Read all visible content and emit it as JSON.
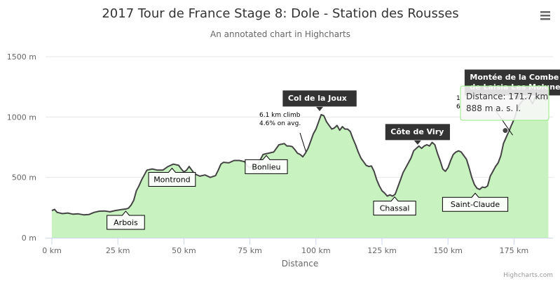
{
  "title": "2017 Tour de France Stage 8: Dole - Station des Rousses",
  "subtitle": "An annotated chart in Highcharts",
  "credits": "Highcharts.com",
  "menu_icon": "hamburger-menu-icon",
  "colors": {
    "area_fill": "#c8f3c0",
    "line": "#444444",
    "dark_label": "#333333",
    "tooltip_border": "#90ed7d",
    "grid": "#e6e6e6"
  },
  "chart_data": {
    "type": "area",
    "xlabel": "Distance",
    "ylabel": "",
    "x_unit": "km",
    "y_unit": "m",
    "xlim": [
      0,
      190
    ],
    "ylim": [
      0,
      1500
    ],
    "x_ticks": [
      "0 km",
      "25 km",
      "50 km",
      "75 km",
      "100 km",
      "125 km",
      "150 km",
      "175 km"
    ],
    "y_ticks": [
      "0 m",
      "500 m",
      "1000 m",
      "1500 m"
    ],
    "grid": true,
    "points": [
      [
        0,
        225
      ],
      [
        1,
        235
      ],
      [
        2,
        210
      ],
      [
        4,
        200
      ],
      [
        6,
        205
      ],
      [
        8,
        195
      ],
      [
        10,
        198
      ],
      [
        12,
        190
      ],
      [
        14,
        192
      ],
      [
        16,
        210
      ],
      [
        18,
        220
      ],
      [
        20,
        222
      ],
      [
        22,
        215
      ],
      [
        24,
        225
      ],
      [
        26,
        232
      ],
      [
        28,
        238
      ],
      [
        29,
        245
      ],
      [
        30,
        270
      ],
      [
        31,
        310
      ],
      [
        32,
        390
      ],
      [
        33,
        430
      ],
      [
        34,
        480
      ],
      [
        35,
        520
      ],
      [
        36,
        560
      ],
      [
        38,
        570
      ],
      [
        40,
        560
      ],
      [
        42,
        560
      ],
      [
        44,
        590
      ],
      [
        46,
        610
      ],
      [
        48,
        600
      ],
      [
        49,
        570
      ],
      [
        50,
        545
      ],
      [
        51,
        560
      ],
      [
        52,
        590
      ],
      [
        53,
        560
      ],
      [
        54,
        530
      ],
      [
        56,
        510
      ],
      [
        58,
        520
      ],
      [
        60,
        500
      ],
      [
        62,
        515
      ],
      [
        63,
        560
      ],
      [
        64,
        610
      ],
      [
        65,
        625
      ],
      [
        67,
        620
      ],
      [
        69,
        640
      ],
      [
        71,
        640
      ],
      [
        73,
        630
      ],
      [
        74,
        595
      ],
      [
        75,
        580
      ],
      [
        76,
        600
      ],
      [
        78,
        610
      ],
      [
        79,
        650
      ],
      [
        80,
        690
      ],
      [
        82,
        700
      ],
      [
        84,
        710
      ],
      [
        86,
        770
      ],
      [
        88,
        780
      ],
      [
        89,
        760
      ],
      [
        90,
        760
      ],
      [
        91,
        755
      ],
      [
        92,
        730
      ],
      [
        93,
        700
      ],
      [
        94,
        690
      ],
      [
        95,
        670
      ],
      [
        96,
        700
      ],
      [
        97,
        740
      ],
      [
        98,
        800
      ],
      [
        99,
        860
      ],
      [
        100,
        900
      ],
      [
        101,
        960
      ],
      [
        102,
        1020
      ],
      [
        103,
        1010
      ],
      [
        104,
        960
      ],
      [
        105,
        930
      ],
      [
        106,
        900
      ],
      [
        107,
        910
      ],
      [
        108,
        930
      ],
      [
        109,
        890
      ],
      [
        110,
        920
      ],
      [
        111,
        900
      ],
      [
        112,
        900
      ],
      [
        113,
        880
      ],
      [
        114,
        820
      ],
      [
        115,
        770
      ],
      [
        116,
        710
      ],
      [
        117,
        660
      ],
      [
        118,
        630
      ],
      [
        119,
        600
      ],
      [
        120,
        590
      ],
      [
        121,
        595
      ],
      [
        122,
        550
      ],
      [
        123,
        480
      ],
      [
        124,
        430
      ],
      [
        125,
        390
      ],
      [
        126,
        370
      ],
      [
        127,
        345
      ],
      [
        128,
        355
      ],
      [
        129,
        345
      ],
      [
        130,
        360
      ],
      [
        131,
        420
      ],
      [
        132,
        480
      ],
      [
        133,
        540
      ],
      [
        134,
        580
      ],
      [
        135,
        620
      ],
      [
        136,
        660
      ],
      [
        137,
        720
      ],
      [
        138,
        740
      ],
      [
        139,
        760
      ],
      [
        140,
        740
      ],
      [
        141,
        760
      ],
      [
        142,
        770
      ],
      [
        143,
        760
      ],
      [
        144,
        790
      ],
      [
        145,
        770
      ],
      [
        146,
        700
      ],
      [
        147,
        640
      ],
      [
        148,
        570
      ],
      [
        149,
        550
      ],
      [
        150,
        580
      ],
      [
        151,
        640
      ],
      [
        152,
        690
      ],
      [
        153,
        710
      ],
      [
        154,
        720
      ],
      [
        155,
        710
      ],
      [
        156,
        680
      ],
      [
        157,
        650
      ],
      [
        158,
        580
      ],
      [
        159,
        500
      ],
      [
        160,
        440
      ],
      [
        161,
        410
      ],
      [
        162,
        400
      ],
      [
        163,
        420
      ],
      [
        164,
        415
      ],
      [
        165,
        430
      ],
      [
        166,
        510
      ],
      [
        167,
        550
      ],
      [
        168,
        590
      ],
      [
        169,
        620
      ],
      [
        170,
        680
      ],
      [
        171,
        780
      ],
      [
        172,
        830
      ],
      [
        173,
        880
      ],
      [
        174,
        930
      ],
      [
        175,
        980
      ],
      [
        176,
        1050
      ],
      [
        177,
        1100
      ],
      [
        178,
        1130
      ],
      [
        179,
        1150
      ],
      [
        180,
        1165
      ],
      [
        181,
        1150
      ],
      [
        182,
        1110
      ],
      [
        183,
        1160
      ],
      [
        184,
        1170
      ],
      [
        185,
        1150
      ],
      [
        186,
        1160
      ],
      [
        187,
        1140
      ],
      [
        188,
        1165
      ]
    ],
    "annotations_dark": [
      {
        "text": "Col de la Joux",
        "x": 101.4,
        "y": 1026
      },
      {
        "text": "Côte de Viry",
        "x": 138.5,
        "y": 748
      },
      {
        "lines": [
          "Montée de la Combe",
          "de Laisia Les Molunes"
        ],
        "x": 176.4,
        "y": 1118
      }
    ],
    "annotations_light": [
      {
        "text": "Arbois",
        "x": 27.98,
        "y": 255
      },
      {
        "text": "Montrond",
        "x": 45.5,
        "y": 611
      },
      {
        "text": "Bonlieu",
        "x": 81.2,
        "y": 716
      },
      {
        "text": "Chassal",
        "x": 129.8,
        "y": 373
      },
      {
        "text": "Saint-Claude",
        "x": 160.3,
        "y": 404
      }
    ],
    "annotations_plain": [
      {
        "lines": [
          "6.1 km climb",
          "4.6% on avg."
        ],
        "x": 96.2,
        "y": 713
      },
      {
        "lines": [
          "1",
          "6"
        ],
        "x": 174.5,
        "y": 850
      }
    ],
    "tooltip": {
      "x": 171.7,
      "y": 888,
      "line1": "Distance: 171.7 km",
      "line2": "888 m a. s. l."
    }
  }
}
